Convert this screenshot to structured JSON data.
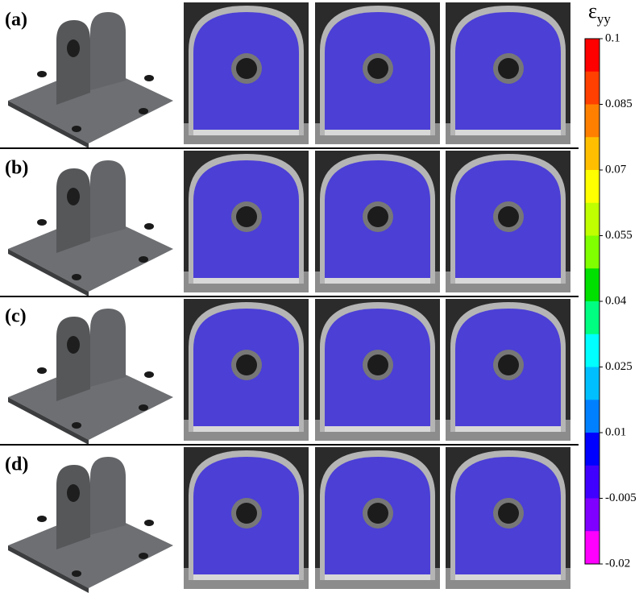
{
  "panels": [
    {
      "label": "(a)"
    },
    {
      "label": "(b)"
    },
    {
      "label": "(c)"
    },
    {
      "label": "(d)"
    }
  ],
  "colorbar": {
    "symbol": "ε",
    "subscript": "yy",
    "lim": [
      -0.02,
      0.1
    ],
    "ticks": [
      0.1,
      0.085,
      0.07,
      0.055,
      0.04,
      0.025,
      0.01,
      -0.005,
      -0.02
    ],
    "colors": [
      "#ff0000",
      "#ff4000",
      "#ff8000",
      "#ffbf00",
      "#ffff00",
      "#bfff00",
      "#80ff00",
      "#00e000",
      "#00ff80",
      "#00ffff",
      "#00bfff",
      "#0080ff",
      "#0000ff",
      "#4000ff",
      "#8000ff",
      "#ff00ff"
    ]
  }
}
